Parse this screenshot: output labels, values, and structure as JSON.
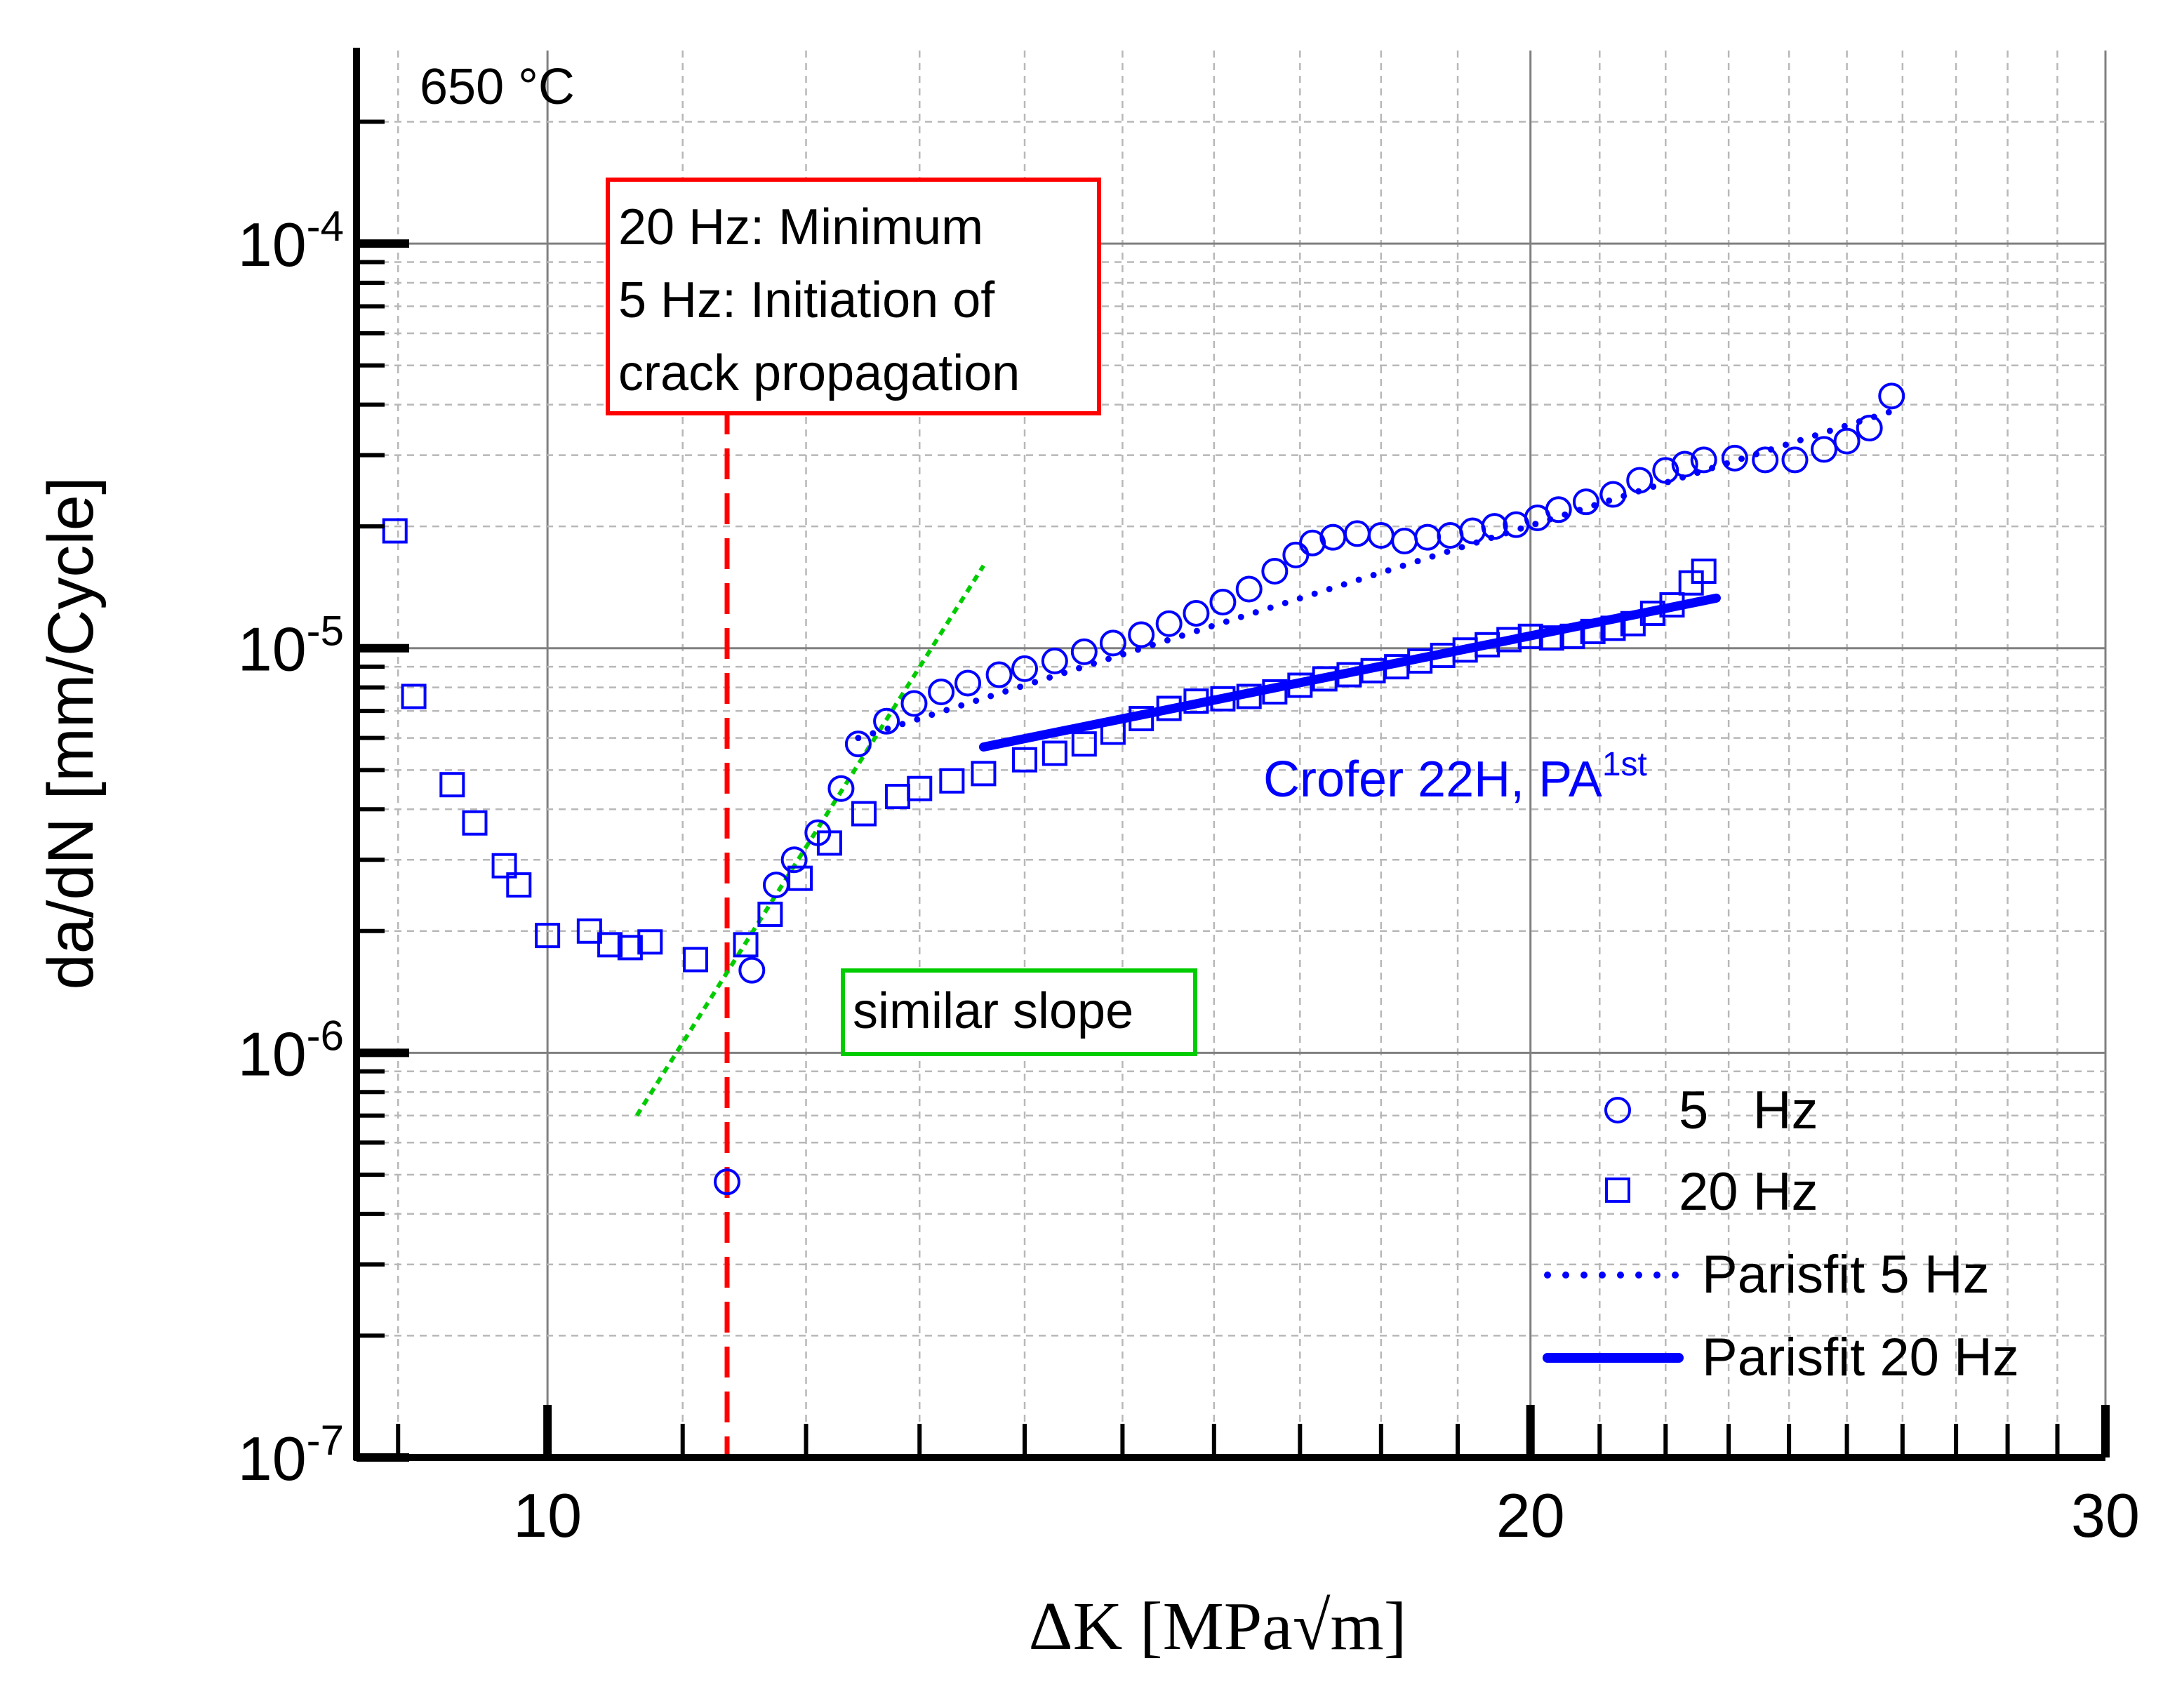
{
  "chart_data": {
    "type": "scatter",
    "title": "",
    "xlabel": "ΔK [MPa√m]",
    "ylabel": "da/dN [mm/Cycle]",
    "xscale": "log",
    "yscale": "log",
    "xlim": [
      8.74,
      30
    ],
    "ylim": [
      1e-07,
      0.0003
    ],
    "x_tick_labels": [
      {
        "value": 10,
        "label": "10"
      },
      {
        "value": 20,
        "label": "20"
      },
      {
        "value": 30,
        "label": "30"
      }
    ],
    "y_tick_labels": [
      {
        "value": 1e-07,
        "base": "10",
        "exp": "-7"
      },
      {
        "value": 1e-06,
        "base": "10",
        "exp": "-6"
      },
      {
        "value": 1e-05,
        "base": "10",
        "exp": "-5"
      },
      {
        "value": 0.0001,
        "base": "10",
        "exp": "-4"
      }
    ],
    "grid": true,
    "series": [
      {
        "name": "5   Hz",
        "marker": "circle",
        "color": "#0000ff",
        "points": [
          [
            11.35,
            4.8e-07
          ],
          [
            11.55,
            1.6e-06
          ],
          [
            11.75,
            2.6e-06
          ],
          [
            11.9,
            3e-06
          ],
          [
            12.1,
            3.5e-06
          ],
          [
            12.3,
            4.5e-06
          ],
          [
            12.45,
            5.8e-06
          ],
          [
            12.7,
            6.6e-06
          ],
          [
            12.95,
            7.3e-06
          ],
          [
            13.2,
            7.8e-06
          ],
          [
            13.45,
            8.2e-06
          ],
          [
            13.75,
            8.6e-06
          ],
          [
            14.0,
            8.9e-06
          ],
          [
            14.3,
            9.3e-06
          ],
          [
            14.6,
            9.8e-06
          ],
          [
            14.9,
            1.03e-05
          ],
          [
            15.2,
            1.08e-05
          ],
          [
            15.5,
            1.15e-05
          ],
          [
            15.8,
            1.22e-05
          ],
          [
            16.1,
            1.3e-05
          ],
          [
            16.4,
            1.4e-05
          ],
          [
            16.7,
            1.55e-05
          ],
          [
            16.95,
            1.7e-05
          ],
          [
            17.15,
            1.82e-05
          ],
          [
            17.4,
            1.88e-05
          ],
          [
            17.7,
            1.92e-05
          ],
          [
            18.0,
            1.9e-05
          ],
          [
            18.3,
            1.84e-05
          ],
          [
            18.6,
            1.88e-05
          ],
          [
            18.9,
            1.9e-05
          ],
          [
            19.2,
            1.95e-05
          ],
          [
            19.5,
            2e-05
          ],
          [
            19.8,
            2.02e-05
          ],
          [
            20.1,
            2.1e-05
          ],
          [
            20.4,
            2.2e-05
          ],
          [
            20.8,
            2.3e-05
          ],
          [
            21.2,
            2.4e-05
          ],
          [
            21.6,
            2.6e-05
          ],
          [
            22.0,
            2.75e-05
          ],
          [
            22.3,
            2.85e-05
          ],
          [
            22.6,
            2.92e-05
          ],
          [
            23.1,
            2.95e-05
          ],
          [
            23.6,
            2.92e-05
          ],
          [
            24.1,
            2.92e-05
          ],
          [
            24.6,
            3.1e-05
          ],
          [
            25.0,
            3.25e-05
          ],
          [
            25.4,
            3.5e-05
          ],
          [
            25.8,
            4.2e-05
          ]
        ]
      },
      {
        "name": "20 Hz",
        "marker": "square",
        "color": "#0000ff",
        "points": [
          [
            8.98,
            1.95e-05
          ],
          [
            9.1,
            7.6e-06
          ],
          [
            9.35,
            4.6e-06
          ],
          [
            9.5,
            3.7e-06
          ],
          [
            9.7,
            2.9e-06
          ],
          [
            9.8,
            2.6e-06
          ],
          [
            10.0,
            1.95e-06
          ],
          [
            10.3,
            2e-06
          ],
          [
            10.45,
            1.85e-06
          ],
          [
            10.6,
            1.82e-06
          ],
          [
            10.75,
            1.88e-06
          ],
          [
            11.1,
            1.7e-06
          ],
          [
            11.5,
            1.85e-06
          ],
          [
            11.7,
            2.2e-06
          ],
          [
            11.95,
            2.7e-06
          ],
          [
            12.2,
            3.3e-06
          ],
          [
            12.5,
            3.9e-06
          ],
          [
            12.8,
            4.3e-06
          ],
          [
            13.0,
            4.5e-06
          ],
          [
            13.3,
            4.7e-06
          ],
          [
            13.6,
            4.9e-06
          ],
          [
            14.0,
            5.3e-06
          ],
          [
            14.3,
            5.5e-06
          ],
          [
            14.6,
            5.8e-06
          ],
          [
            14.9,
            6.2e-06
          ],
          [
            15.2,
            6.7e-06
          ],
          [
            15.5,
            7.1e-06
          ],
          [
            15.8,
            7.4e-06
          ],
          [
            16.1,
            7.5e-06
          ],
          [
            16.4,
            7.6e-06
          ],
          [
            16.7,
            7.8e-06
          ],
          [
            17.0,
            8.1e-06
          ],
          [
            17.3,
            8.4e-06
          ],
          [
            17.6,
            8.6e-06
          ],
          [
            17.9,
            8.8e-06
          ],
          [
            18.2,
            9e-06
          ],
          [
            18.5,
            9.3e-06
          ],
          [
            18.8,
            9.6e-06
          ],
          [
            19.1,
            9.9e-06
          ],
          [
            19.4,
            1.02e-05
          ],
          [
            19.7,
            1.05e-05
          ],
          [
            20.0,
            1.07e-05
          ],
          [
            20.3,
            1.06e-05
          ],
          [
            20.6,
            1.07e-05
          ],
          [
            20.9,
            1.1e-05
          ],
          [
            21.2,
            1.12e-05
          ],
          [
            21.5,
            1.15e-05
          ],
          [
            21.8,
            1.22e-05
          ],
          [
            22.1,
            1.28e-05
          ],
          [
            22.4,
            1.45e-05
          ],
          [
            22.6,
            1.55e-05
          ]
        ]
      },
      {
        "name": "Parisfit 5 Hz",
        "style": "dotted",
        "color": "#0000ff",
        "x_range": [
          12.45,
          25.8
        ],
        "y_range": [
          6e-06,
          3.85e-05
        ]
      },
      {
        "name": "Parisfit 20 Hz",
        "style": "solid",
        "color": "#0000ff",
        "x_range": [
          13.6,
          22.8
        ],
        "y_range": [
          5.7e-06,
          1.33e-05
        ]
      }
    ],
    "guide_lines": [
      {
        "name": "threshold-line",
        "style": "dashed",
        "color": "#ff0000",
        "x": 11.35
      },
      {
        "name": "slope-line",
        "style": "dotted",
        "color": "#00cc00",
        "points": [
          [
            10.65,
            7e-07
          ],
          [
            13.6,
            1.6e-05
          ]
        ]
      }
    ],
    "annotations": {
      "temperature": "650 °C",
      "red_box_lines": [
        "20 Hz: Minimum",
        "5 Hz: Initiation of",
        "crack propagation"
      ],
      "green_box": "similar slope",
      "material_base": "Crofer 22H, PA",
      "material_sup": "1st"
    },
    "legend_position": "bottom-right"
  },
  "colors": {
    "series": "#0000ff",
    "threshold": "#ff0000",
    "slope": "#00cc00",
    "axis": "#000000",
    "grid_major": "#808080",
    "grid_minor": "#b8b8b8"
  }
}
